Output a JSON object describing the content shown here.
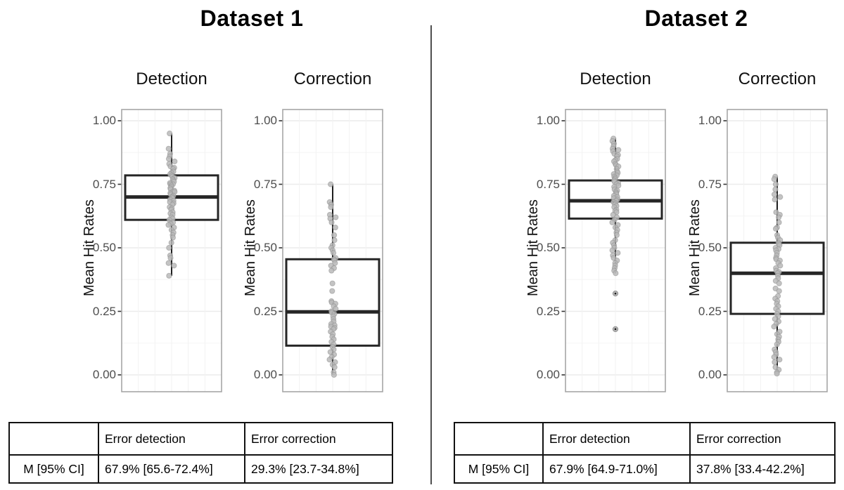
{
  "page": {
    "background": "#ffffff"
  },
  "chart_data": {
    "type": "boxplot",
    "ylabel": "Mean Hit Rates",
    "ylim": [
      0,
      1
    ],
    "grid": true,
    "yticks": [
      1.0,
      0.75,
      0.5,
      0.25,
      0.0
    ],
    "ytick_labels": [
      "1.00",
      "0.75",
      "0.50",
      "0.25",
      "0.00"
    ],
    "colors": {
      "box_stroke": "#262626",
      "median_stroke": "#262626",
      "whisker_stroke": "#1f1f1f",
      "point_fill": "#bababa",
      "point_edge": "#8f8f8f",
      "panel_border": "#a6a6a6",
      "grid_major": "#ececec",
      "grid_minor": "#f5f5f5",
      "tick_text": "#4d4d4d",
      "divider": "#4f4f4f"
    },
    "figures": [
      {
        "title": "Dataset 1",
        "subplots": [
          {
            "title": "Detection",
            "box": {
              "q1": 0.61,
              "median": 0.7,
              "q3": 0.785,
              "whisker_low": 0.39,
              "whisker_high": 0.95
            },
            "outliers": [],
            "points": [
              0.95,
              0.89,
              0.87,
              0.86,
              0.85,
              0.84,
              0.83,
              0.82,
              0.815,
              0.81,
              0.8,
              0.795,
              0.79,
              0.785,
              0.78,
              0.775,
              0.77,
              0.765,
              0.76,
              0.755,
              0.75,
              0.75,
              0.745,
              0.74,
              0.735,
              0.73,
              0.725,
              0.72,
              0.72,
              0.715,
              0.71,
              0.705,
              0.7,
              0.7,
              0.695,
              0.69,
              0.685,
              0.68,
              0.675,
              0.67,
              0.66,
              0.655,
              0.65,
              0.64,
              0.635,
              0.63,
              0.62,
              0.615,
              0.61,
              0.6,
              0.595,
              0.59,
              0.58,
              0.57,
              0.56,
              0.55,
              0.54,
              0.52,
              0.5,
              0.47,
              0.46,
              0.44,
              0.43,
              0.39
            ]
          },
          {
            "title": "Correction",
            "box": {
              "q1": 0.115,
              "median": 0.248,
              "q3": 0.455,
              "whisker_low": 0.0,
              "whisker_high": 0.75
            },
            "outliers": [],
            "points": [
              0.75,
              0.68,
              0.67,
              0.66,
              0.63,
              0.62,
              0.615,
              0.6,
              0.58,
              0.55,
              0.53,
              0.51,
              0.5,
              0.49,
              0.48,
              0.46,
              0.455,
              0.45,
              0.44,
              0.43,
              0.42,
              0.41,
              0.36,
              0.33,
              0.29,
              0.285,
              0.28,
              0.27,
              0.26,
              0.25,
              0.245,
              0.24,
              0.23,
              0.22,
              0.21,
              0.2,
              0.195,
              0.19,
              0.185,
              0.18,
              0.17,
              0.16,
              0.15,
              0.14,
              0.13,
              0.12,
              0.11,
              0.1,
              0.09,
              0.08,
              0.07,
              0.06,
              0.05,
              0.04,
              0.03,
              0.01,
              0.0
            ]
          }
        ],
        "table": {
          "headers": [
            "",
            "Error detection",
            "Error correction"
          ],
          "rows": [
            [
              "M [95% CI]",
              "67.9% [65.6-72.4%]",
              "29.3% [23.7-34.8%]"
            ]
          ]
        }
      },
      {
        "title": "Dataset 2",
        "subplots": [
          {
            "title": "Detection",
            "box": {
              "q1": 0.615,
              "median": 0.685,
              "q3": 0.765,
              "whisker_low": 0.4,
              "whisker_high": 0.93
            },
            "outliers": [
              0.32,
              0.18
            ],
            "points": [
              0.93,
              0.92,
              0.91,
              0.9,
              0.89,
              0.885,
              0.88,
              0.87,
              0.865,
              0.86,
              0.85,
              0.845,
              0.84,
              0.83,
              0.825,
              0.82,
              0.81,
              0.8,
              0.795,
              0.79,
              0.785,
              0.78,
              0.775,
              0.77,
              0.765,
              0.76,
              0.755,
              0.75,
              0.745,
              0.74,
              0.73,
              0.725,
              0.72,
              0.715,
              0.71,
              0.705,
              0.7,
              0.695,
              0.69,
              0.685,
              0.68,
              0.675,
              0.67,
              0.665,
              0.66,
              0.65,
              0.645,
              0.64,
              0.63,
              0.62,
              0.61,
              0.6,
              0.59,
              0.58,
              0.57,
              0.56,
              0.55,
              0.53,
              0.52,
              0.51,
              0.5,
              0.49,
              0.48,
              0.47,
              0.46,
              0.45,
              0.44,
              0.43,
              0.42,
              0.41,
              0.4
            ]
          },
          {
            "title": "Correction",
            "box": {
              "q1": 0.24,
              "median": 0.4,
              "q3": 0.52,
              "whisker_low": 0.005,
              "whisker_high": 0.78
            },
            "outliers": [],
            "points": [
              0.78,
              0.77,
              0.75,
              0.73,
              0.71,
              0.7,
              0.69,
              0.64,
              0.63,
              0.62,
              0.6,
              0.58,
              0.575,
              0.55,
              0.54,
              0.53,
              0.52,
              0.515,
              0.51,
              0.5,
              0.495,
              0.49,
              0.48,
              0.47,
              0.46,
              0.455,
              0.45,
              0.44,
              0.43,
              0.42,
              0.41,
              0.405,
              0.4,
              0.39,
              0.38,
              0.37,
              0.36,
              0.34,
              0.33,
              0.31,
              0.3,
              0.29,
              0.28,
              0.27,
              0.26,
              0.25,
              0.24,
              0.23,
              0.22,
              0.21,
              0.2,
              0.19,
              0.17,
              0.16,
              0.15,
              0.14,
              0.13,
              0.12,
              0.1,
              0.09,
              0.08,
              0.07,
              0.06,
              0.05,
              0.03,
              0.02,
              0.01,
              0.005
            ]
          }
        ],
        "table": {
          "headers": [
            "",
            "Error detection",
            "Error correction"
          ],
          "rows": [
            [
              "M [95% CI]",
              "67.9% [64.9-71.0%]",
              "37.8% [33.4-42.2%]"
            ]
          ]
        }
      }
    ]
  }
}
